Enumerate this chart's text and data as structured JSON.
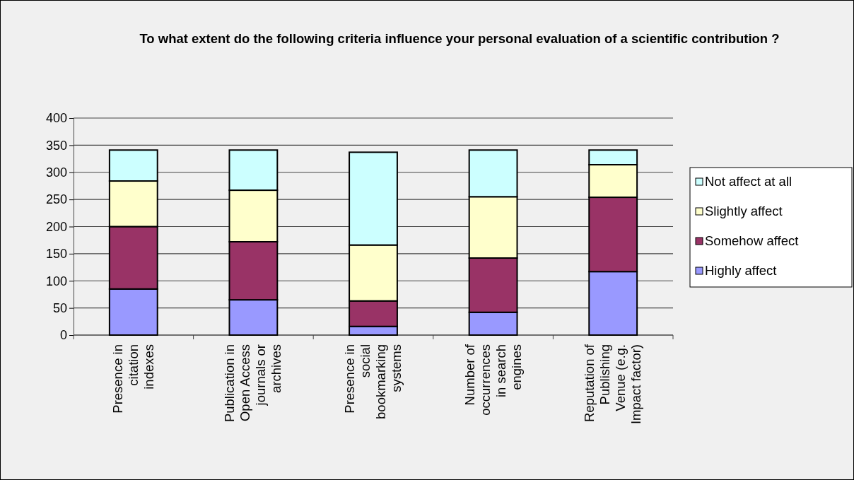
{
  "chart_data": {
    "type": "bar",
    "title": "To what extent do the following criteria influence your personal evaluation of a scientific contribution ?",
    "categories": [
      "Presence in citation indexes",
      "Publication in Open Access journals or archives",
      "Presence in social bookmarking systems",
      "Number of occurrences in search engines",
      "Reputation of Publishing Venue (e.g. Impact factor)"
    ],
    "stacked": true,
    "series": [
      {
        "name": "Highly affect",
        "color": "#9999ff",
        "values": [
          85,
          65,
          16,
          42,
          117
        ]
      },
      {
        "name": "Somehow affect",
        "color": "#993366",
        "values": [
          115,
          107,
          47,
          100,
          137
        ]
      },
      {
        "name": "Slightly affect",
        "color": "#ffffcc",
        "values": [
          84,
          95,
          103,
          113,
          60
        ]
      },
      {
        "name": "Not affect at all",
        "color": "#ccffff",
        "values": [
          57,
          74,
          171,
          86,
          27
        ]
      }
    ],
    "ylim": [
      0,
      400
    ],
    "yticks": [
      0,
      50,
      100,
      150,
      200,
      250,
      300,
      350,
      400
    ],
    "grid": "y",
    "legend": "right"
  }
}
